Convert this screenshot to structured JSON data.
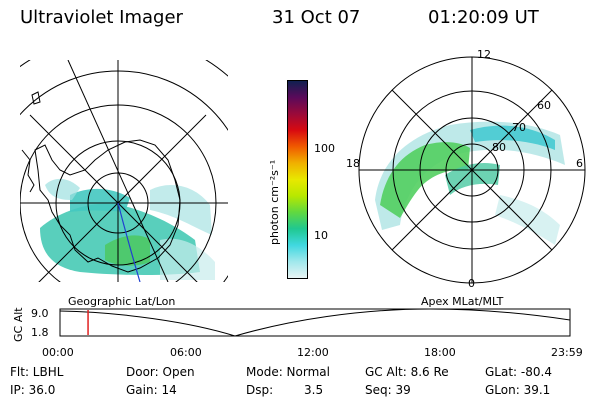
{
  "header": {
    "instrument": "Ultraviolet Imager",
    "date": "31 Oct 07",
    "time": "01:20:09 UT"
  },
  "left_map": {
    "caption": "Geographic Lat/Lon"
  },
  "right_map": {
    "caption": "Apex MLat/MLT",
    "mlt_labels": {
      "top": "12",
      "left": "18",
      "right": "6",
      "bottom": "0"
    },
    "lat_labels": [
      "60",
      "70",
      "80"
    ]
  },
  "colorbar": {
    "unit_label": "photon cm⁻²s⁻¹",
    "ticks": [
      "100",
      "10"
    ],
    "colors": [
      "#102050",
      "#5a0a5a",
      "#9a0a3a",
      "#d80a10",
      "#f05a00",
      "#f0b000",
      "#e8e800",
      "#b8e800",
      "#60d840",
      "#20c890",
      "#40d8e0",
      "#a0e8ec",
      "#e8f4f4"
    ]
  },
  "timeline": {
    "axis_title": "GC Alt",
    "y_ticks": [
      "9.0",
      "1.8"
    ],
    "x_ticks": [
      "00:00",
      "06:00",
      "12:00",
      "18:00",
      "23:59"
    ],
    "current_time_fraction": 0.055
  },
  "status": {
    "flt": "Flt: LBHL",
    "ip": "IP: 36.0",
    "door": "Door: Open",
    "gain": "Gain: 14",
    "mode": "Mode: Normal",
    "dsp_label": "Dsp:",
    "dsp_value": "3.5",
    "gc_alt": "GC Alt: 8.6 Re",
    "seq": "Seq: 39",
    "glat": "GLat: -80.4",
    "glon": "GLon: 39.1"
  }
}
